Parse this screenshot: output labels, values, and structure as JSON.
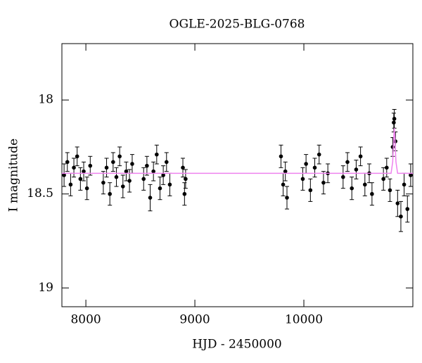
{
  "chart_data": {
    "type": "scatter",
    "title": "OGLE-2025-BLG-0768",
    "x_label": "HJD - 2450000",
    "y_label": "I magnitude",
    "xlim": [
      7780,
      11000
    ],
    "xticks": [
      8000,
      9000,
      10000
    ],
    "ylim": [
      17.7,
      19.1
    ],
    "yticks": [
      18,
      18.5,
      19
    ],
    "y_inverted": true,
    "series": [
      {
        "color": "#000000",
        "x": [
          7800,
          7830,
          7860,
          7890,
          7920,
          7950,
          7980,
          8010,
          8040,
          8160,
          8190,
          8220,
          8250,
          8280,
          8310,
          8340,
          8370,
          8400,
          8425,
          8530,
          8560,
          8590,
          8620,
          8650,
          8680,
          8710,
          8740,
          8770,
          8890,
          8905,
          8915,
          9790,
          9810,
          9830,
          9845,
          9990,
          10020,
          10060,
          10100,
          10140,
          10180,
          10220,
          10360,
          10400,
          10440,
          10480,
          10520,
          10560,
          10600,
          10625,
          10730,
          10760,
          10790,
          10815,
          10825,
          10830,
          10840,
          10860,
          10890,
          10920,
          10950,
          10980
        ],
        "values": [
          18.4,
          18.33,
          18.45,
          18.36,
          18.3,
          18.42,
          18.38,
          18.47,
          18.35,
          18.44,
          18.36,
          18.5,
          18.33,
          18.41,
          18.3,
          18.46,
          18.38,
          18.43,
          18.34,
          18.42,
          18.35,
          18.52,
          18.38,
          18.29,
          18.47,
          18.4,
          18.33,
          18.45,
          18.36,
          18.5,
          18.42,
          18.3,
          18.45,
          18.38,
          18.52,
          18.42,
          18.34,
          18.48,
          18.36,
          18.29,
          18.44,
          18.39,
          18.41,
          18.33,
          18.47,
          18.37,
          18.3,
          18.45,
          18.39,
          18.5,
          18.42,
          18.36,
          18.48,
          18.25,
          18.12,
          18.1,
          18.22,
          18.55,
          18.62,
          18.45,
          18.58,
          18.4
        ],
        "errors": [
          0.06,
          0.05,
          0.06,
          0.05,
          0.05,
          0.06,
          0.05,
          0.06,
          0.05,
          0.06,
          0.05,
          0.06,
          0.05,
          0.05,
          0.05,
          0.06,
          0.05,
          0.06,
          0.05,
          0.06,
          0.05,
          0.07,
          0.05,
          0.05,
          0.06,
          0.05,
          0.05,
          0.06,
          0.05,
          0.06,
          0.05,
          0.06,
          0.06,
          0.05,
          0.06,
          0.06,
          0.05,
          0.06,
          0.05,
          0.05,
          0.06,
          0.05,
          0.06,
          0.05,
          0.06,
          0.05,
          0.05,
          0.06,
          0.05,
          0.06,
          0.06,
          0.05,
          0.06,
          0.05,
          0.05,
          0.05,
          0.05,
          0.07,
          0.08,
          0.06,
          0.07,
          0.06
        ]
      },
      {
        "type": "line",
        "color": "#ee82ee",
        "x": [
          7780,
          10800,
          10815,
          10825,
          10830,
          10835,
          10845,
          10860,
          11000
        ],
        "values": [
          18.39,
          18.39,
          18.33,
          18.2,
          18.15,
          18.2,
          18.33,
          18.39,
          18.39
        ]
      }
    ]
  }
}
